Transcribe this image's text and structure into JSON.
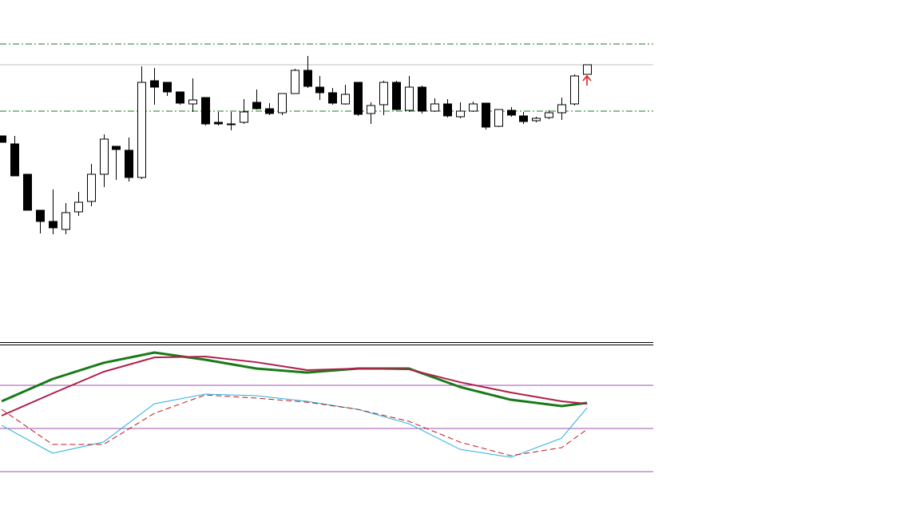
{
  "chart_data": [
    {
      "type": "candlestick",
      "x": [
        0,
        1,
        2,
        3,
        4,
        5,
        6,
        7,
        8,
        9,
        10,
        11,
        12,
        13,
        14,
        15,
        16,
        17,
        18,
        19,
        20,
        21,
        22,
        23,
        24,
        25,
        26,
        27,
        28,
        29,
        30,
        31,
        32,
        33,
        34,
        35,
        36,
        37,
        38,
        39,
        40,
        41,
        42,
        43,
        44,
        45,
        46
      ],
      "open": [
        478,
        468,
        430,
        385,
        371,
        361,
        383,
        396,
        430,
        465,
        460,
        426,
        547,
        545,
        533,
        518,
        526,
        495,
        493,
        495,
        520,
        512,
        507,
        531,
        560,
        539,
        532,
        518,
        545,
        506,
        517,
        545,
        510,
        539,
        509,
        518,
        502,
        509,
        519,
        490,
        510,
        503,
        497,
        501,
        507,
        518,
        555
      ],
      "close": [
        470,
        428,
        385,
        371,
        363,
        382,
        395,
        430,
        474,
        461,
        426,
        545,
        539,
        533,
        519,
        523,
        493,
        493,
        492,
        508,
        512,
        506,
        531,
        560,
        540,
        532,
        519,
        530,
        505,
        516,
        545,
        511,
        539,
        509,
        518,
        503,
        509,
        518,
        489,
        511,
        504,
        496,
        500,
        507,
        517,
        553,
        567
      ],
      "high": [
        478,
        478,
        430,
        385,
        411,
        394,
        408,
        443,
        480,
        465,
        476,
        565,
        563,
        545,
        533,
        550,
        526,
        508,
        508,
        524,
        536,
        519,
        531,
        562,
        578,
        553,
        538,
        542,
        545,
        520,
        547,
        547,
        553,
        541,
        525,
        524,
        520,
        521,
        519,
        511,
        514,
        508,
        502,
        510,
        526,
        555,
        567
      ],
      "low": [
        470,
        428,
        385,
        356,
        355,
        355,
        378,
        390,
        414,
        423,
        421,
        424,
        517,
        528,
        517,
        508,
        491,
        491,
        485,
        493,
        511,
        504,
        504,
        531,
        538,
        523,
        517,
        517,
        503,
        493,
        504,
        510,
        508,
        506,
        508,
        501,
        500,
        508,
        486,
        489,
        502,
        493,
        495,
        499,
        498,
        516,
        555
      ],
      "colors": {
        "up": "#ffffff",
        "down": "#000000",
        "edge": "#000000"
      },
      "levels": [
        593,
        509
      ],
      "level_color": "#1a7f1a",
      "price_line": 567,
      "price_line_color": "#c0c0c0",
      "xlim": [
        -0.13,
        51.2
      ],
      "ylim": [
        220,
        648
      ]
    },
    {
      "type": "line",
      "x": [
        0,
        4,
        8,
        12,
        16,
        20,
        24,
        28,
        32,
        36,
        40,
        44,
        46
      ],
      "series": [
        {
          "color": "#1a7a1a",
          "width": 3,
          "dash": false,
          "values": [
            68.9,
            84.4,
            95.6,
            102.8,
            97.8,
            91.7,
            88.9,
            91.7,
            91.7,
            78.9,
            70.0,
            65.6,
            67.8
          ]
        },
        {
          "color": "#b0204a",
          "width": 2,
          "dash": false,
          "values": [
            58.9,
            74.4,
            89.4,
            99.4,
            100,
            96.1,
            90.6,
            91.7,
            91.1,
            82.2,
            75.0,
            68.9,
            67.2
          ]
        },
        {
          "color": "#2ab0e0",
          "width": 1,
          "dash": false,
          "values": [
            52.2,
            32.8,
            40.6,
            67.2,
            73.9,
            72.8,
            68.9,
            63.3,
            53.3,
            35.6,
            30.0,
            43.3,
            64.4
          ]
        },
        {
          "color": "#c01818",
          "width": 1,
          "dash": true,
          "values": [
            63.3,
            38.9,
            38.9,
            60.6,
            73.3,
            71.1,
            68.3,
            63.3,
            55.0,
            40.6,
            31.1,
            36.7,
            49.4
          ]
        }
      ],
      "levels": [
        80,
        50,
        20
      ],
      "level_color": "#a050b0",
      "xlim": [
        -0.13,
        51.2
      ],
      "ylim": [
        -12.2,
        107.8
      ]
    }
  ]
}
